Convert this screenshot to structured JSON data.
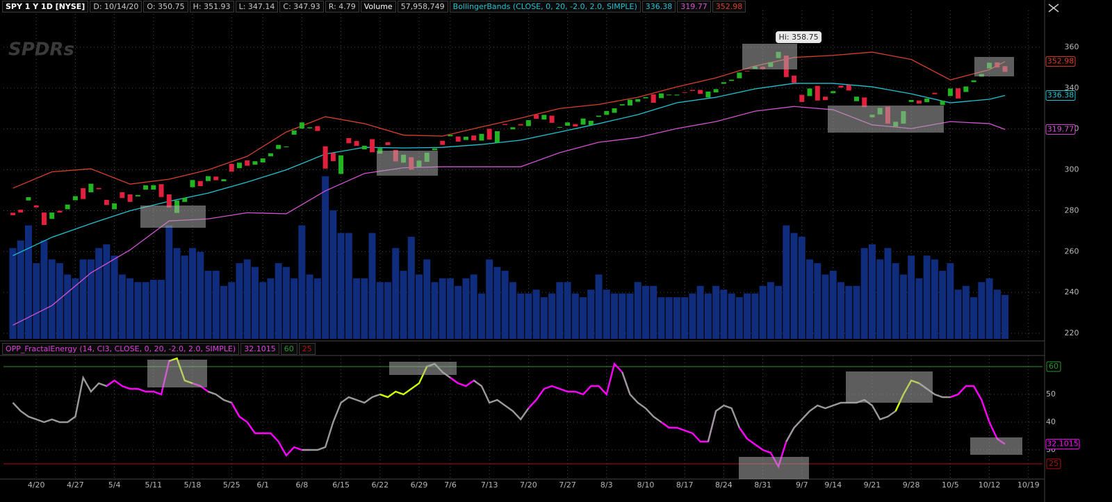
{
  "chart_data": [
    {
      "type": "candlestick",
      "title": "SPY 1 Y 1D [NYSE]",
      "info": [
        "D: 10/14/20",
        "O: 350.75",
        "H: 351.93",
        "L: 347.14",
        "C: 347.93",
        "R: 4.79"
      ],
      "volume_label": "Volume",
      "volume_value": "57,958,749",
      "study_label": "BollingerBands (CLOSE, 0, 20, -2.0, 2.0, SIMPLE)",
      "watermark": "SPDRs",
      "annotation": "Hi: 358.75",
      "up_color": "#22b522",
      "down_color": "#e0203c",
      "open": [
        279.0,
        280.5,
        285.0,
        282.6,
        279.1,
        276.0,
        280.0,
        280.7,
        285.1,
        291.0,
        289.0,
        291.1,
        285.3,
        280.7,
        289.0,
        288.0,
        287.0,
        290.3,
        290.3,
        293.0,
        288.0,
        278.9,
        284.3,
        291.5,
        294.5,
        294.5,
        296.7,
        294.4,
        302.9,
        300.8,
        304.6,
        302.5,
        303.6,
        306.6,
        310.2,
        311.1,
        317.2,
        320.2,
        320.3,
        321.4,
        311.5,
        308.2,
        298.0,
        315.5,
        314.1,
        310.0,
        315.0,
        307.9,
        313.5,
        309.8,
        303.5,
        306.2,
        301.4,
        303.9,
        309.6,
        314.2,
        316.4,
        316.3,
        314.6,
        316.8,
        314.3,
        320.1,
        313.3,
        322.4,
        319.8,
        322.4,
        321.4,
        327.0,
        324.6,
        326.5,
        320.9,
        321.6,
        322.4,
        322.1,
        321.9,
        325.9,
        326.9,
        327.9,
        331.5,
        331.5,
        333.3,
        335.0,
        336.9,
        335.1,
        336.6,
        336.4,
        338.0,
        339.1,
        339.1,
        335.4,
        337.9,
        342.1,
        343.5,
        344.8,
        348.5,
        349.4,
        350.4,
        350.3,
        354.7,
        355.9,
        346.1,
        336.7,
        336.1,
        341.1,
        335.8,
        337.5,
        341.2,
        341.5,
        333.6,
        335.4,
        325.7,
        327.1,
        330.9,
        321.2,
        322.6,
        333.2,
        333.9,
        333.1,
        337.7,
        331.7,
        336.1,
        339.9,
        338.1,
        342.9,
        345.6,
        349.6,
        352.6,
        350.75
      ],
      "close": [
        277.8,
        279.1,
        286.6,
        281.6,
        273.0,
        279.1,
        279.1,
        283.0,
        287.1,
        285.7,
        293.2,
        290.5,
        282.8,
        283.6,
        286.2,
        284.3,
        287.7,
        292.4,
        292.5,
        286.7,
        281.6,
        285.0,
        286.3,
        295.0,
        292.0,
        296.9,
        294.9,
        295.4,
        299.1,
        303.5,
        302.0,
        304.2,
        305.6,
        308.1,
        312.2,
        311.4,
        319.3,
        323.2,
        320.8,
        319.0,
        300.6,
        304.2,
        307.1,
        313.0,
        311.7,
        311.8,
        308.6,
        310.6,
        312.1,
        304.1,
        307.4,
        300.1,
        304.5,
        308.4,
        310.5,
        312.2,
        317.1,
        313.8,
        316.2,
        314.4,
        317.6,
        314.8,
        318.9,
        321.9,
        320.8,
        321.7,
        324.3,
        325.0,
        326.9,
        323.0,
        320.9,
        323.2,
        321.2,
        325.1,
        324.0,
        326.5,
        328.8,
        330.1,
        332.1,
        334.3,
        334.6,
        335.6,
        332.8,
        337.4,
        336.8,
        336.8,
        337.9,
        338.6,
        337.2,
        338.3,
        339.5,
        342.9,
        344.1,
        347.6,
        348.3,
        350.6,
        349.3,
        352.6,
        357.7,
        345.4,
        342.6,
        333.2,
        339.8,
        333.9,
        334.1,
        338.5,
        340.2,
        338.8,
        335.8,
        330.7,
        327.0,
        330.3,
        322.6,
        323.5,
        328.7,
        334.2,
        332.4,
        334.9,
        337.0,
        333.8,
        339.8,
        334.9,
        340.8,
        343.8,
        346.9,
        352.4,
        350.1,
        347.93
      ],
      "volume": {
        "color": "#102c7c",
        "ylim": [
          0,
          235
        ],
        "values": [
          120,
          130,
          150,
          100,
          130,
          105,
          100,
          85,
          80,
          105,
          105,
          120,
          125,
          110,
          85,
          80,
          75,
          75,
          78,
          78,
          150,
          120,
          110,
          120,
          115,
          90,
          90,
          70,
          75,
          100,
          105,
          95,
          75,
          80,
          100,
          95,
          80,
          150,
          85,
          80,
          215,
          170,
          140,
          140,
          80,
          80,
          140,
          75,
          75,
          120,
          90,
          135,
          85,
          105,
          75,
          80,
          80,
          70,
          80,
          85,
          60,
          105,
          95,
          90,
          75,
          60,
          60,
          65,
          55,
          60,
          75,
          75,
          60,
          55,
          65,
          85,
          65,
          60,
          60,
          60,
          75,
          70,
          70,
          55,
          55,
          55,
          55,
          60,
          70,
          60,
          70,
          65,
          60,
          55,
          60,
          60,
          70,
          75,
          70,
          150,
          140,
          135,
          105,
          100,
          85,
          90,
          75,
          70,
          70,
          120,
          125,
          105,
          120,
          100,
          85,
          110,
          80,
          110,
          105,
          90,
          100,
          65,
          70,
          55,
          75,
          80,
          65,
          58
        ]
      },
      "bands": {
        "x": [
          0,
          5,
          10,
          15,
          20,
          25,
          30,
          35,
          40,
          45,
          50,
          55,
          60,
          65,
          70,
          75,
          80,
          85,
          90,
          95,
          100,
          105,
          110,
          115,
          120,
          125,
          127
        ],
        "series": [
          {
            "color": "#d8402c",
            "values": [
              291,
              299,
              300.5,
              293,
              295.4,
              300,
              306.6,
              318.5,
              326,
              322.6,
              317,
              316.5,
              321,
              325.3,
              330,
              332,
              335.5,
              340.6,
              345,
              350.8,
              355,
              356,
              357.6,
              354,
              344,
              349,
              352.98
            ]
          },
          {
            "color": "#1fc4d4",
            "values": [
              258,
              267,
              273.7,
              280,
              284.6,
              288.6,
              294,
              300,
              307.7,
              311,
              310.7,
              311,
              312.4,
              314.5,
              318.5,
              322.6,
              327,
              332.8,
              335.5,
              339.6,
              342.3,
              342.3,
              340.6,
              337.2,
              332.8,
              334.5,
              336.38
            ]
          },
          {
            "color": "#d452d4",
            "values": [
              224,
              233.6,
              249.6,
              260.8,
              275,
              276,
              279,
              278.5,
              289.7,
              298.2,
              301,
              301.5,
              301.5,
              301.5,
              308.4,
              313.5,
              315.8,
              320.2,
              323.6,
              328.7,
              331,
              329.4,
              322,
              320.2,
              323.6,
              322.6,
              319.77
            ]
          }
        ]
      },
      "xlim": [
        -1.2,
        131.8
      ],
      "xticks": [
        {
          "value": 3,
          "label": "4/20"
        },
        {
          "value": 8,
          "label": "4/27"
        },
        {
          "value": 13,
          "label": "5/4"
        },
        {
          "value": 18,
          "label": "5/11"
        },
        {
          "value": 23,
          "label": "5/18"
        },
        {
          "value": 28,
          "label": "5/25"
        },
        {
          "value": 32,
          "label": "6/1"
        },
        {
          "value": 37,
          "label": "6/8"
        },
        {
          "value": 42,
          "label": "6/15"
        },
        {
          "value": 47,
          "label": "6/22"
        },
        {
          "value": 52,
          "label": "6/29"
        },
        {
          "value": 56,
          "label": "7/6"
        },
        {
          "value": 61,
          "label": "7/13"
        },
        {
          "value": 66,
          "label": "7/20"
        },
        {
          "value": 71,
          "label": "7/27"
        },
        {
          "value": 76,
          "label": "8/3"
        },
        {
          "value": 81,
          "label": "8/10"
        },
        {
          "value": 86,
          "label": "8/17"
        },
        {
          "value": 91,
          "label": "8/24"
        },
        {
          "value": 96,
          "label": "8/31"
        },
        {
          "value": 101,
          "label": "9/7"
        },
        {
          "value": 105,
          "label": "9/14"
        },
        {
          "value": 110,
          "label": "9/21"
        },
        {
          "value": 115,
          "label": "9/28"
        },
        {
          "value": 120,
          "label": "10/5"
        },
        {
          "value": 125,
          "label": "10/12"
        },
        {
          "value": 130,
          "label": "10/19"
        }
      ],
      "ylim": [
        217.3,
        378
      ],
      "yticks": [
        220,
        240,
        260,
        280,
        300,
        320,
        340,
        360
      ],
      "grid": true
    },
    {
      "type": "line",
      "title": "OPP_FractalEnergy (14, CI3, CLOSE, 0, 20, -2.0, 2.0, SIMPLE)",
      "values": [
        47,
        44,
        42,
        41,
        40,
        41,
        40,
        40,
        42,
        56,
        51,
        54,
        53,
        55,
        53,
        52,
        52,
        51,
        51,
        50,
        62,
        63,
        55,
        54,
        53,
        51,
        50,
        48,
        47,
        42,
        40,
        36,
        36,
        36,
        33,
        28,
        31,
        30,
        30,
        30,
        31,
        40,
        47,
        49,
        48,
        47,
        49,
        50,
        49,
        51,
        50,
        52,
        54,
        60,
        61,
        58,
        56,
        54,
        53,
        55,
        53,
        47,
        48,
        46,
        44,
        41,
        45,
        48,
        52,
        53,
        52,
        51,
        51,
        50,
        53,
        53,
        50,
        61,
        58,
        50,
        47,
        45,
        42,
        40,
        38,
        38,
        37,
        36,
        33,
        33,
        44,
        46,
        45,
        38,
        34,
        32,
        30,
        29,
        24,
        33,
        38,
        41,
        44,
        46,
        45,
        46,
        47,
        47,
        47,
        48,
        46,
        41,
        42,
        44,
        50,
        55,
        54,
        52,
        50,
        49,
        49,
        50,
        53,
        53,
        48,
        40,
        34,
        32.1015
      ],
      "color_runs": [
        {
          "start": 0,
          "color": "#9a9a9a"
        },
        {
          "start": 13,
          "color": "#ff00ff"
        },
        {
          "start": 21,
          "color": "#ccff00"
        },
        {
          "start": 24,
          "color": "#ff00ff"
        },
        {
          "start": 26,
          "color": "#9a9a9a"
        },
        {
          "start": 29,
          "color": "#ff00ff"
        },
        {
          "start": 38,
          "color": "#9a9a9a"
        },
        {
          "start": 48,
          "color": "#ccff00"
        },
        {
          "start": 54,
          "color": "#9a9a9a"
        },
        {
          "start": 57,
          "color": "#ff00ff"
        },
        {
          "start": 60,
          "color": "#9a9a9a"
        },
        {
          "start": 67,
          "color": "#ff00ff"
        },
        {
          "start": 79,
          "color": "#9a9a9a"
        },
        {
          "start": 84,
          "color": "#ff00ff"
        },
        {
          "start": 90,
          "color": "#9a9a9a"
        },
        {
          "start": 94,
          "color": "#ff00ff"
        },
        {
          "start": 100,
          "color": "#9a9a9a"
        },
        {
          "start": 114,
          "color": "#ccff00"
        },
        {
          "start": 117,
          "color": "#9a9a9a"
        },
        {
          "start": 121,
          "color": "#ff00ff"
        }
      ],
      "levels": [
        {
          "value": 60,
          "color": "#2a9a2a"
        },
        {
          "value": 25,
          "color": "#b01010"
        }
      ],
      "ylim": [
        19.5,
        64
      ],
      "yticks": [
        30,
        40,
        50
      ],
      "grid": true
    }
  ]
}
